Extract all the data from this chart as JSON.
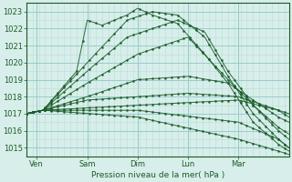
{
  "xlabel": "Pression niveau de la mer( hPa )",
  "ylim": [
    1014.5,
    1023.5
  ],
  "yticks": [
    1015,
    1016,
    1017,
    1018,
    1019,
    1020,
    1021,
    1022,
    1023
  ],
  "xlim": [
    0,
    125
  ],
  "xtick_positions": [
    5,
    29,
    53,
    77,
    101
  ],
  "xtick_labels": [
    "Ven",
    "Sam",
    "Dim",
    "Lun",
    "Mar"
  ],
  "bg_color": "#d8eeea",
  "grid_minor_color": "#b8ddd8",
  "grid_major_color": "#99cccc",
  "line_color": "#1a5c28",
  "convergence_x": 8,
  "convergence_y": 1017.2,
  "figsize": [
    3.2,
    2.0
  ],
  "dpi": 100
}
